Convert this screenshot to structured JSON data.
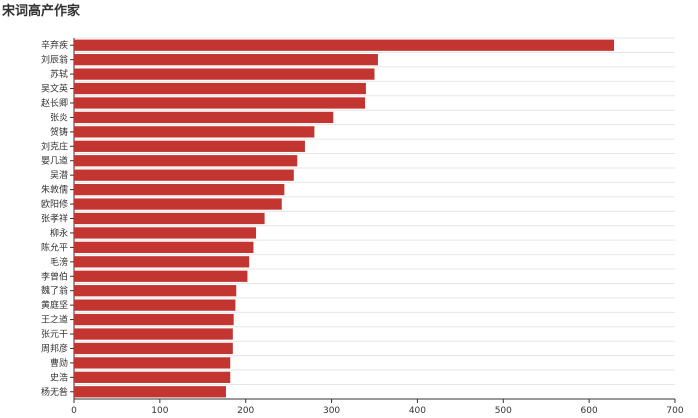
{
  "chart_data": {
    "type": "bar",
    "orientation": "horizontal",
    "title": "宋词高产作家",
    "categories": [
      "辛弃疾",
      "刘辰翁",
      "苏轼",
      "吴文英",
      "赵长卿",
      "张炎",
      "贺铸",
      "刘克庄",
      "晏几道",
      "吴潜",
      "朱敦儒",
      "欧阳修",
      "张孝祥",
      "柳永",
      "陈允平",
      "毛滂",
      "李曾伯",
      "魏了翁",
      "黄庭坚",
      "王之道",
      "张元干",
      "周邦彦",
      "曹勋",
      "史浩",
      "杨无咎"
    ],
    "values": [
      629,
      354,
      350,
      340,
      339,
      302,
      280,
      269,
      260,
      256,
      245,
      242,
      222,
      212,
      209,
      204,
      202,
      189,
      188,
      186,
      185,
      185,
      182,
      182,
      177
    ],
    "xlim": [
      0,
      700
    ],
    "xticks": [
      0,
      100,
      200,
      300,
      400,
      500,
      600,
      700
    ],
    "bar_color": "#c23531",
    "grid": true,
    "legend": "none"
  }
}
